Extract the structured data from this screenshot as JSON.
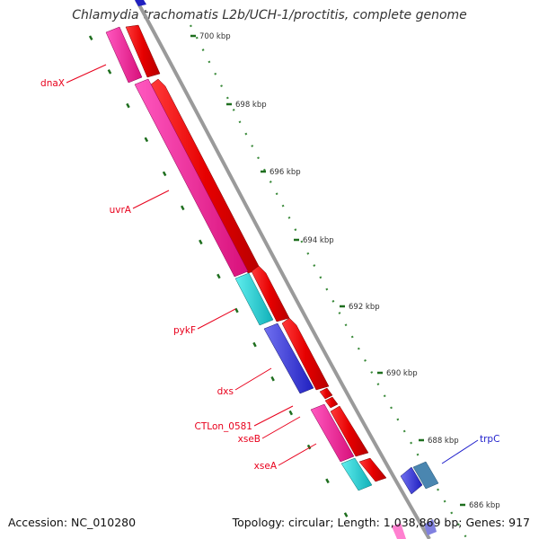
{
  "title": "Chlamydia trachomatis L2b/UCH-1/proctitis, complete genome",
  "footer": {
    "accession": "Accession: NC_010280",
    "topology": "Topology: circular; Length: 1,038,869 bp; Genes: 917"
  },
  "ruler_unit": "kbp",
  "scale_ticks": [
    "700",
    "698",
    "696",
    "694",
    "692",
    "690",
    "688",
    "686"
  ],
  "gene_labels": [
    {
      "id": "dnaX",
      "text": "dnaX",
      "color": "#e8001c"
    },
    {
      "id": "uvrA",
      "text": "uvrA",
      "color": "#e8001c"
    },
    {
      "id": "pykF",
      "text": "pykF",
      "color": "#e8001c"
    },
    {
      "id": "dxs",
      "text": "dxs",
      "color": "#e8001c"
    },
    {
      "id": "ctlon-0581",
      "text": "CTLon_0581",
      "color": "#e8001c"
    },
    {
      "id": "xseB",
      "text": "xseB",
      "color": "#e8001c"
    },
    {
      "id": "xseA",
      "text": "xseA",
      "color": "#e8001c"
    },
    {
      "id": "trpC",
      "text": "trpC",
      "color": "#1f1fcc"
    }
  ],
  "colors": {
    "forward_cds": "#f0001a",
    "reverse_magenta": "#f020a0",
    "reverse_cyan": "#1ccccc",
    "reverse_blue": "#3535d6",
    "trp_steel": "#4a86b0",
    "backbone": "#999999",
    "tick_dot": "#3a8a3a",
    "major_tick": "#1e6e1e"
  }
}
